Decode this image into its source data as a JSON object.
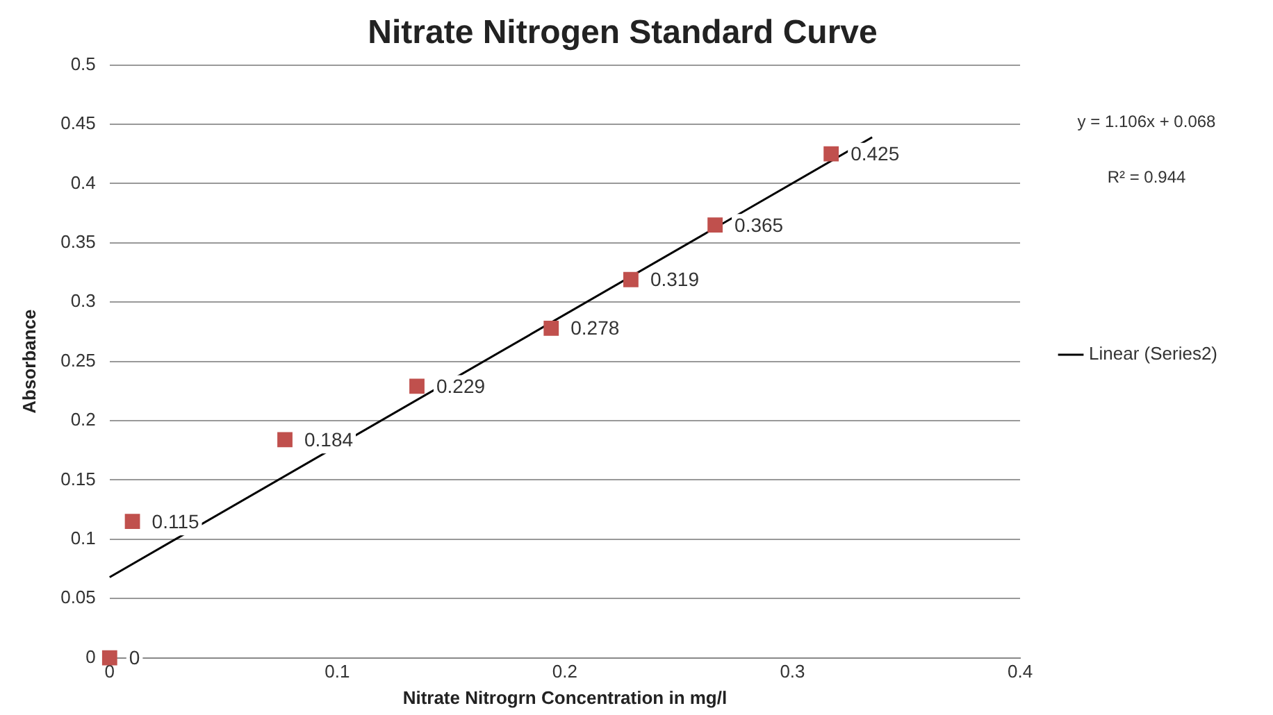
{
  "chart_data": {
    "type": "scatter",
    "title": "Nitrate Nitrogen Standard Curve",
    "xlabel": "Nitrate Nitrogrn Concentration in mg/l",
    "ylabel": "Absorbance",
    "annotations": [
      "y = 1.106x + 0.068",
      "R² = 0.944"
    ],
    "series": [
      {
        "type": "scatter",
        "color": "#c0504d",
        "marker": "square",
        "x": [
          0,
          0.01,
          0.077,
          0.135,
          0.194,
          0.229,
          0.266,
          0.317
        ],
        "values": [
          0,
          0.115,
          0.184,
          0.229,
          0.278,
          0.319,
          0.365,
          0.425
        ],
        "value_labels": [
          "0",
          "0.115",
          "0.184",
          "0.229",
          "0.278",
          "0.319",
          "0.365",
          "0.425"
        ]
      },
      {
        "type": "line",
        "name": "Linear (Series2)",
        "color": "#000000",
        "marker": "none",
        "line_style": "solid",
        "x": [
          0,
          0.335
        ],
        "values": [
          0.068,
          0.439
        ]
      }
    ],
    "xlim": [
      0,
      0.4
    ],
    "xticks": [
      0,
      0.1,
      0.2,
      0.3,
      0.4
    ],
    "ylim": [
      0,
      0.5
    ],
    "yticks": [
      0,
      0.05,
      0.1,
      0.15,
      0.2,
      0.25,
      0.3,
      0.35,
      0.4,
      0.45,
      0.5
    ],
    "grid": "y",
    "legend": "right"
  }
}
